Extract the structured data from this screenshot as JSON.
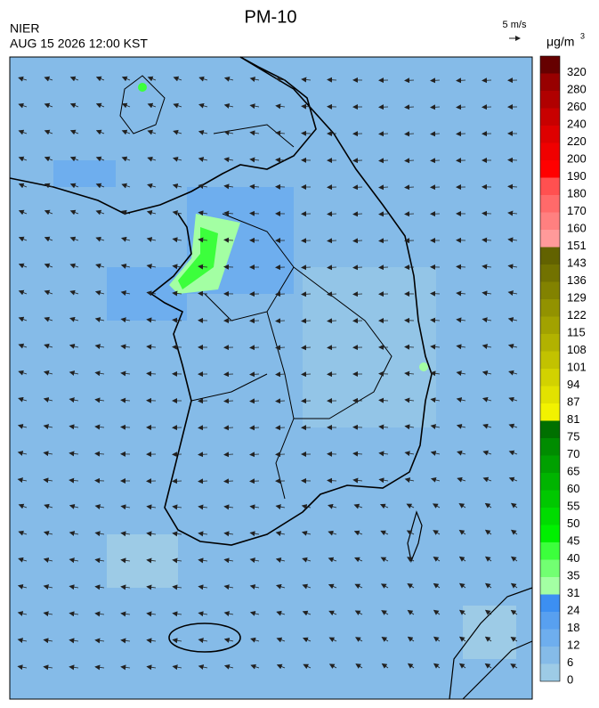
{
  "header": {
    "title": "PM-10",
    "agency": "NIER",
    "datetime": "AUG 15 2026 12:00 KST",
    "wind_scale": "5 m/s",
    "unit": "μg/m",
    "unit_exponent": "3"
  },
  "colorbar": {
    "levels": [
      0,
      6,
      12,
      18,
      24,
      31,
      35,
      40,
      45,
      50,
      55,
      60,
      65,
      70,
      75,
      81,
      87,
      94,
      101,
      108,
      115,
      122,
      129,
      136,
      143,
      151,
      160,
      170,
      180,
      190,
      200,
      220,
      240,
      260,
      280,
      320
    ],
    "colors": [
      "#9dcbe6",
      "#85bbe8",
      "#6eaeee",
      "#58a0f0",
      "#3c8ff2",
      "#a3ffa3",
      "#72ff72",
      "#3cff3c",
      "#00f000",
      "#00dc00",
      "#00c800",
      "#00b400",
      "#00a000",
      "#008c00",
      "#007000",
      "#f2f200",
      "#e2e200",
      "#d2d200",
      "#c2c200",
      "#b2b200",
      "#a2a200",
      "#929200",
      "#828200",
      "#727200",
      "#626200",
      "#ff9a9a",
      "#ff8080",
      "#ff6a6a",
      "#ff5050",
      "#ff0000",
      "#f00000",
      "#de0000",
      "#c80000",
      "#b00000",
      "#980000",
      "#660000"
    ]
  }
}
